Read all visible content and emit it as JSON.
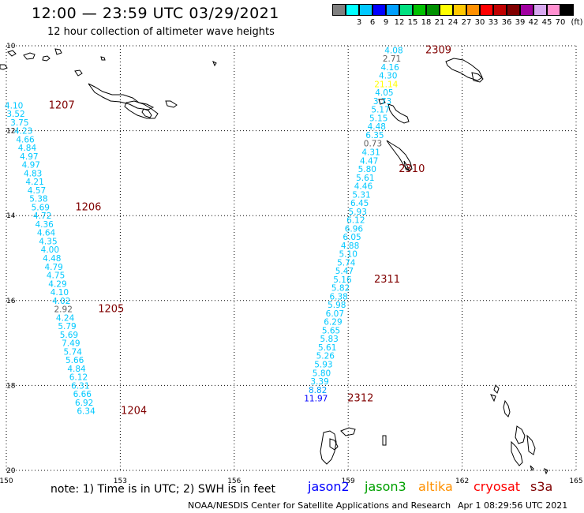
{
  "header": {
    "title": "12:00 — 23:59 UTC 03/29/2021",
    "subtitle": "12 hour collection of altimeter wave heights"
  },
  "legend": {
    "unit": "(ft)",
    "swatches": [
      {
        "color": "#808080",
        "label": ""
      },
      {
        "color": "#00ffff",
        "label": "3"
      },
      {
        "color": "#00c8ff",
        "label": "6"
      },
      {
        "color": "#0000ff",
        "label": "9"
      },
      {
        "color": "#00a0ff",
        "label": "12"
      },
      {
        "color": "#00e080",
        "label": "15"
      },
      {
        "color": "#00c000",
        "label": "18"
      },
      {
        "color": "#009000",
        "label": "21"
      },
      {
        "color": "#ffff00",
        "label": "24"
      },
      {
        "color": "#ffc800",
        "label": "27"
      },
      {
        "color": "#ff9000",
        "label": "30"
      },
      {
        "color": "#ff0000",
        "label": "33"
      },
      {
        "color": "#c00000",
        "label": "36"
      },
      {
        "color": "#800000",
        "label": "39"
      },
      {
        "color": "#a000a0",
        "label": "42"
      },
      {
        "color": "#d8a8f0",
        "label": "45"
      },
      {
        "color": "#ff90d0",
        "label": "70"
      },
      {
        "color": "#000000",
        "label": ""
      }
    ]
  },
  "map": {
    "lon_ticks": [
      "150",
      "153",
      "156",
      "159",
      "162",
      "165"
    ],
    "lat_ticks": [
      "10",
      "12",
      "14",
      "16",
      "18",
      "20"
    ],
    "tracks": [
      {
        "name": "track-west",
        "times": [
          "1207",
          "1206",
          "1205",
          "1204"
        ],
        "points": [
          {
            "v": "4.10",
            "c": "#00c8ff",
            "lon": 150.2,
            "lat": 11.4
          },
          {
            "v": "3.52",
            "c": "#00c8ff",
            "lon": 150.25,
            "lat": 11.6
          },
          {
            "v": "3.75",
            "c": "#00c8ff",
            "lon": 150.35,
            "lat": 11.8
          },
          {
            "v": "4.23",
            "c": "#00c8ff",
            "lon": 150.45,
            "lat": 12.0
          },
          {
            "v": "4.66",
            "c": "#00c8ff",
            "lon": 150.5,
            "lat": 12.2
          },
          {
            "v": "4.84",
            "c": "#00c8ff",
            "lon": 150.55,
            "lat": 12.4
          },
          {
            "v": "4.97",
            "c": "#00c8ff",
            "lon": 150.6,
            "lat": 12.6
          },
          {
            "v": "4.97",
            "c": "#00c8ff",
            "lon": 150.65,
            "lat": 12.8
          },
          {
            "v": "4.83",
            "c": "#00c8ff",
            "lon": 150.7,
            "lat": 13.0
          },
          {
            "v": "4.21",
            "c": "#00c8ff",
            "lon": 150.75,
            "lat": 13.2
          },
          {
            "v": "4.57",
            "c": "#00c8ff",
            "lon": 150.8,
            "lat": 13.4
          },
          {
            "v": "5.38",
            "c": "#00c8ff",
            "lon": 150.85,
            "lat": 13.6
          },
          {
            "v": "5.69",
            "c": "#00c8ff",
            "lon": 150.9,
            "lat": 13.8
          },
          {
            "v": "4.72",
            "c": "#00c8ff",
            "lon": 150.95,
            "lat": 14.0
          },
          {
            "v": "4.36",
            "c": "#00c8ff",
            "lon": 151.0,
            "lat": 14.2
          },
          {
            "v": "4.64",
            "c": "#00c8ff",
            "lon": 151.05,
            "lat": 14.4
          },
          {
            "v": "4.35",
            "c": "#00c8ff",
            "lon": 151.1,
            "lat": 14.6
          },
          {
            "v": "4.00",
            "c": "#00c8ff",
            "lon": 151.15,
            "lat": 14.8
          },
          {
            "v": "4.48",
            "c": "#00c8ff",
            "lon": 151.2,
            "lat": 15.0
          },
          {
            "v": "4.79",
            "c": "#00c8ff",
            "lon": 151.25,
            "lat": 15.2
          },
          {
            "v": "4.75",
            "c": "#00c8ff",
            "lon": 151.3,
            "lat": 15.4
          },
          {
            "v": "4.29",
            "c": "#00c8ff",
            "lon": 151.35,
            "lat": 15.6
          },
          {
            "v": "4.10",
            "c": "#00c8ff",
            "lon": 151.4,
            "lat": 15.8
          },
          {
            "v": "4.02",
            "c": "#00c8ff",
            "lon": 151.45,
            "lat": 16.0
          },
          {
            "v": "2.92",
            "c": "#606060",
            "lon": 151.5,
            "lat": 16.2
          },
          {
            "v": "4.24",
            "c": "#00c8ff",
            "lon": 151.55,
            "lat": 16.4
          },
          {
            "v": "5.79",
            "c": "#00c8ff",
            "lon": 151.6,
            "lat": 16.6
          },
          {
            "v": "5.69",
            "c": "#00c8ff",
            "lon": 151.65,
            "lat": 16.8
          },
          {
            "v": "7.49",
            "c": "#00c8ff",
            "lon": 151.7,
            "lat": 17.0
          },
          {
            "v": "5.74",
            "c": "#00c8ff",
            "lon": 151.75,
            "lat": 17.2
          },
          {
            "v": "5.66",
            "c": "#00c8ff",
            "lon": 151.8,
            "lat": 17.4
          },
          {
            "v": "4.84",
            "c": "#00c8ff",
            "lon": 151.85,
            "lat": 17.6
          },
          {
            "v": "6.12",
            "c": "#00c8ff",
            "lon": 151.9,
            "lat": 17.8
          },
          {
            "v": "6.31",
            "c": "#00c8ff",
            "lon": 151.95,
            "lat": 18.0
          },
          {
            "v": "6.66",
            "c": "#00c8ff",
            "lon": 152.0,
            "lat": 18.2
          },
          {
            "v": "6.92",
            "c": "#00c8ff",
            "lon": 152.05,
            "lat": 18.4
          },
          {
            "v": "6.34",
            "c": "#00c8ff",
            "lon": 152.1,
            "lat": 18.6
          }
        ]
      },
      {
        "name": "track-east",
        "times": [
          "2309",
          "2310",
          "2311",
          "2312"
        ],
        "points": [
          {
            "v": "4.08",
            "c": "#00c8ff",
            "lon": 160.2,
            "lat": 10.1
          },
          {
            "v": "2.71",
            "c": "#606060",
            "lon": 160.15,
            "lat": 10.3
          },
          {
            "v": "4.16",
            "c": "#00c8ff",
            "lon": 160.1,
            "lat": 10.5
          },
          {
            "v": "4.30",
            "c": "#00c8ff",
            "lon": 160.05,
            "lat": 10.7
          },
          {
            "v": "21.14",
            "c": "#ffff00",
            "lon": 160.0,
            "lat": 10.9
          },
          {
            "v": "4.05",
            "c": "#00c8ff",
            "lon": 159.95,
            "lat": 11.1
          },
          {
            "v": "3.73",
            "c": "#00c8ff",
            "lon": 159.9,
            "lat": 11.3
          },
          {
            "v": "5.17",
            "c": "#00c8ff",
            "lon": 159.85,
            "lat": 11.5
          },
          {
            "v": "5.15",
            "c": "#00c8ff",
            "lon": 159.8,
            "lat": 11.7
          },
          {
            "v": "4.48",
            "c": "#00c8ff",
            "lon": 159.75,
            "lat": 11.9
          },
          {
            "v": "6.35",
            "c": "#00c8ff",
            "lon": 159.7,
            "lat": 12.1
          },
          {
            "v": "0.73",
            "c": "#606060",
            "lon": 159.65,
            "lat": 12.3
          },
          {
            "v": "4.31",
            "c": "#00c8ff",
            "lon": 159.6,
            "lat": 12.5
          },
          {
            "v": "4.47",
            "c": "#00c8ff",
            "lon": 159.55,
            "lat": 12.7
          },
          {
            "v": "5.80",
            "c": "#00c8ff",
            "lon": 159.5,
            "lat": 12.9
          },
          {
            "v": "5.61",
            "c": "#00c8ff",
            "lon": 159.45,
            "lat": 13.1
          },
          {
            "v": "4.46",
            "c": "#00c8ff",
            "lon": 159.4,
            "lat": 13.3
          },
          {
            "v": "5.31",
            "c": "#00c8ff",
            "lon": 159.35,
            "lat": 13.5
          },
          {
            "v": "6.45",
            "c": "#00c8ff",
            "lon": 159.3,
            "lat": 13.7
          },
          {
            "v": "5.93",
            "c": "#00c8ff",
            "lon": 159.25,
            "lat": 13.9
          },
          {
            "v": "6.12",
            "c": "#00c8ff",
            "lon": 159.2,
            "lat": 14.1
          },
          {
            "v": "6.96",
            "c": "#00c8ff",
            "lon": 159.15,
            "lat": 14.3
          },
          {
            "v": "6.05",
            "c": "#00c8ff",
            "lon": 159.1,
            "lat": 14.5
          },
          {
            "v": "4.88",
            "c": "#00c8ff",
            "lon": 159.05,
            "lat": 14.7
          },
          {
            "v": "5.10",
            "c": "#00c8ff",
            "lon": 159.0,
            "lat": 14.9
          },
          {
            "v": "5.74",
            "c": "#00c8ff",
            "lon": 158.95,
            "lat": 15.1
          },
          {
            "v": "5.47",
            "c": "#00c8ff",
            "lon": 158.9,
            "lat": 15.3
          },
          {
            "v": "5.16",
            "c": "#00c8ff",
            "lon": 158.85,
            "lat": 15.5
          },
          {
            "v": "5.82",
            "c": "#00c8ff",
            "lon": 158.8,
            "lat": 15.7
          },
          {
            "v": "6.38",
            "c": "#00c8ff",
            "lon": 158.75,
            "lat": 15.9
          },
          {
            "v": "5.98",
            "c": "#00c8ff",
            "lon": 158.7,
            "lat": 16.1
          },
          {
            "v": "6.07",
            "c": "#00c8ff",
            "lon": 158.65,
            "lat": 16.3
          },
          {
            "v": "6.29",
            "c": "#00c8ff",
            "lon": 158.6,
            "lat": 16.5
          },
          {
            "v": "5.65",
            "c": "#00c8ff",
            "lon": 158.55,
            "lat": 16.7
          },
          {
            "v": "5.83",
            "c": "#00c8ff",
            "lon": 158.5,
            "lat": 16.9
          },
          {
            "v": "5.61",
            "c": "#00c8ff",
            "lon": 158.45,
            "lat": 17.1
          },
          {
            "v": "5.26",
            "c": "#00c8ff",
            "lon": 158.4,
            "lat": 17.3
          },
          {
            "v": "5.93",
            "c": "#00c8ff",
            "lon": 158.35,
            "lat": 17.5
          },
          {
            "v": "5.80",
            "c": "#00c8ff",
            "lon": 158.3,
            "lat": 17.7
          },
          {
            "v": "3.39",
            "c": "#00c8ff",
            "lon": 158.25,
            "lat": 17.9
          },
          {
            "v": "8.82",
            "c": "#00a0ff",
            "lon": 158.2,
            "lat": 18.1
          },
          {
            "v": "11.97",
            "c": "#0000ff",
            "lon": 158.15,
            "lat": 18.3
          }
        ]
      }
    ]
  },
  "footer": {
    "note": "note:  1) Time is in UTC;  2) SWH is in feet",
    "satellites": [
      {
        "name": "jason2",
        "color": "#0000ff"
      },
      {
        "name": "jason3",
        "color": "#00a000"
      },
      {
        "name": "altika",
        "color": "#ff9000"
      },
      {
        "name": "cryosat",
        "color": "#ff0000"
      },
      {
        "name": "s3a",
        "color": "#800000"
      }
    ],
    "credit": "NOAA/NESDIS Center for Satellite Applications and Research",
    "timestamp": "Apr  1 08:29:56 UTC 2021"
  }
}
